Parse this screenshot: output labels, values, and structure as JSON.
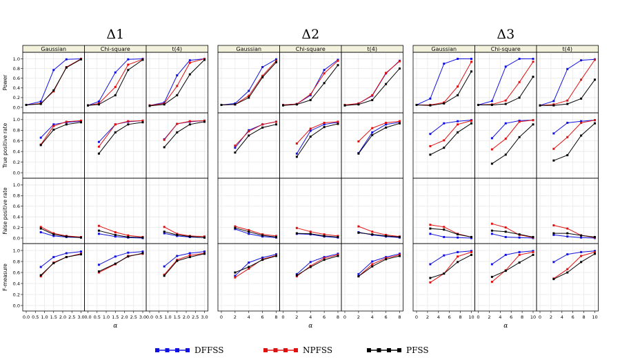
{
  "chart_data": {
    "type": "line",
    "groups": [
      {
        "title": "Δ1",
        "x": [
          [
            0.8,
            1.5,
            2.2,
            3.0
          ],
          [
            0.6,
            1.5,
            2.2,
            3.0
          ],
          [
            0.8,
            1.5,
            2.2,
            3.0
          ]
        ],
        "xlim": [
          0,
          3.0
        ],
        "xticks": [
          "0.0",
          "0.5",
          "1.0",
          "1.5",
          "2.0",
          "2.5",
          "3.0"
        ],
        "xtickvals": [
          0,
          0.5,
          1.0,
          1.5,
          2.0,
          2.5,
          3.0
        ]
      },
      {
        "title": "Δ2",
        "x": [
          [
            2,
            4,
            6,
            8
          ],
          [
            2,
            4,
            6,
            8
          ],
          [
            2,
            4,
            6,
            8
          ]
        ],
        "xlim": [
          0,
          8
        ],
        "xticks": [
          "0",
          "2",
          "4",
          "6",
          "8"
        ],
        "xtickvals": [
          0,
          2,
          4,
          6,
          8
        ]
      },
      {
        "title": "Δ3",
        "x": [
          [
            2.5,
            5,
            7.5,
            10
          ],
          [
            2.5,
            5,
            7.5,
            10
          ],
          [
            2.5,
            5,
            7.5,
            10
          ]
        ],
        "xlim": [
          0,
          10
        ],
        "xticks": [
          "0",
          "2",
          "4",
          "6",
          "8",
          "10"
        ],
        "xtickvals": [
          0,
          2,
          4,
          6,
          8,
          10
        ]
      }
    ],
    "distributions": [
      "Gaussian",
      "Chi-square",
      "t(4)"
    ],
    "rows": [
      "Power",
      "True positive rate",
      "False positive rate",
      "F-measure"
    ],
    "yticks": [
      "0.0",
      "0.2",
      "0.4",
      "0.6",
      "0.8",
      "1.0"
    ],
    "ylim": [
      0,
      1.05
    ],
    "xlabel": "α",
    "power_x0": [
      0,
      0,
      0
    ],
    "series_names": [
      "DFFSS",
      "NPFSS",
      "PFSS"
    ],
    "series_colors": [
      "#1010e0",
      "#e01010",
      "#000000"
    ],
    "data": {
      "Power": [
        [
          {
            "x0": 0,
            "DFFSS": [
              0.05,
              0.12,
              0.77,
              0.99,
              1.0
            ],
            "NPFSS": [
              0.05,
              0.08,
              0.33,
              0.83,
              1.0
            ],
            "PFSS": [
              0.05,
              0.07,
              0.35,
              0.82,
              0.99
            ]
          },
          {
            "x0": 0,
            "DFFSS": [
              0.04,
              0.12,
              0.72,
              0.99,
              1.0
            ],
            "NPFSS": [
              0.04,
              0.08,
              0.42,
              0.88,
              0.99
            ],
            "PFSS": [
              0.04,
              0.06,
              0.25,
              0.77,
              0.98
            ]
          },
          {
            "x0": 0,
            "DFFSS": [
              0.04,
              0.1,
              0.66,
              0.97,
              1.0
            ],
            "NPFSS": [
              0.04,
              0.08,
              0.44,
              0.92,
              1.0
            ],
            "PFSS": [
              0.03,
              0.06,
              0.25,
              0.68,
              0.98
            ]
          }
        ],
        [
          {
            "x0": 0,
            "DFFSS": [
              0.05,
              0.08,
              0.34,
              0.83,
              0.99
            ],
            "NPFSS": [
              0.05,
              0.06,
              0.24,
              0.65,
              0.96
            ],
            "PFSS": [
              0.05,
              0.06,
              0.2,
              0.62,
              0.93
            ]
          },
          {
            "x0": 0,
            "DFFSS": [
              0.05,
              0.07,
              0.25,
              0.77,
              0.98
            ],
            "NPFSS": [
              0.05,
              0.07,
              0.27,
              0.7,
              0.96
            ],
            "PFSS": [
              0.04,
              0.06,
              0.15,
              0.5,
              0.87
            ]
          },
          {
            "x0": 0,
            "DFFSS": [
              0.04,
              0.08,
              0.24,
              0.7,
              0.96
            ],
            "NPFSS": [
              0.05,
              0.08,
              0.25,
              0.71,
              0.95
            ],
            "PFSS": [
              0.04,
              0.06,
              0.15,
              0.48,
              0.8
            ]
          }
        ],
        [
          {
            "x0": 0,
            "DFFSS": [
              0.05,
              0.18,
              0.9,
              1.0,
              1.0
            ],
            "NPFSS": [
              0.05,
              0.05,
              0.1,
              0.43,
              0.94
            ],
            "PFSS": [
              0.05,
              0.04,
              0.08,
              0.25,
              0.74
            ]
          },
          {
            "x0": 0,
            "DFFSS": [
              0.05,
              0.13,
              0.84,
              1.0,
              1.0
            ],
            "NPFSS": [
              0.05,
              0.06,
              0.14,
              0.52,
              0.94
            ],
            "PFSS": [
              0.05,
              0.05,
              0.07,
              0.2,
              0.63
            ]
          },
          {
            "x0": 0,
            "DFFSS": [
              0.04,
              0.13,
              0.79,
              0.97,
              0.99
            ],
            "NPFSS": [
              0.04,
              0.06,
              0.14,
              0.57,
              0.98
            ],
            "PFSS": [
              0.04,
              0.04,
              0.07,
              0.18,
              0.57
            ]
          }
        ]
      ],
      "True positive rate": [
        [
          {
            "DFFSS": [
              0.66,
              0.91,
              0.95,
              0.97
            ],
            "NPFSS": [
              0.53,
              0.88,
              0.96,
              0.98
            ],
            "PFSS": [
              0.52,
              0.81,
              0.91,
              0.95
            ]
          },
          {
            "DFFSS": [
              0.58,
              0.91,
              0.96,
              0.98
            ],
            "NPFSS": [
              0.49,
              0.91,
              0.97,
              0.98
            ],
            "PFSS": [
              0.36,
              0.76,
              0.91,
              0.95
            ]
          },
          {
            "DFFSS": [
              0.63,
              0.92,
              0.96,
              0.98
            ],
            "NPFSS": [
              0.62,
              0.92,
              0.97,
              0.98
            ],
            "PFSS": [
              0.48,
              0.76,
              0.91,
              0.96
            ]
          }
        ],
        [
          {
            "DFFSS": [
              0.47,
              0.8,
              0.91,
              0.96
            ],
            "NPFSS": [
              0.51,
              0.78,
              0.91,
              0.96
            ],
            "PFSS": [
              0.38,
              0.7,
              0.85,
              0.91
            ]
          },
          {
            "DFFSS": [
              0.36,
              0.79,
              0.91,
              0.95
            ],
            "NPFSS": [
              0.55,
              0.83,
              0.94,
              0.96
            ],
            "PFSS": [
              0.3,
              0.68,
              0.86,
              0.92
            ]
          },
          {
            "DFFSS": [
              0.37,
              0.76,
              0.91,
              0.95
            ],
            "NPFSS": [
              0.59,
              0.84,
              0.94,
              0.97
            ],
            "PFSS": [
              0.36,
              0.71,
              0.85,
              0.93
            ]
          }
        ],
        [
          {
            "DFFSS": [
              0.73,
              0.93,
              0.97,
              0.99
            ],
            "NPFSS": [
              0.5,
              0.61,
              0.91,
              0.98
            ],
            "PFSS": [
              0.34,
              0.47,
              0.76,
              0.93
            ]
          },
          {
            "DFFSS": [
              0.65,
              0.93,
              0.98,
              0.99
            ],
            "NPFSS": [
              0.44,
              0.64,
              0.96,
              0.99
            ],
            "PFSS": [
              0.17,
              0.34,
              0.67,
              0.91
            ]
          },
          {
            "DFFSS": [
              0.74,
              0.94,
              0.97,
              0.99
            ],
            "NPFSS": [
              0.45,
              0.67,
              0.94,
              0.99
            ],
            "PFSS": [
              0.23,
              0.33,
              0.7,
              0.93
            ]
          }
        ]
      ],
      "False positive rate": [
        [
          {
            "DFFSS": [
              0.11,
              0.04,
              0.02,
              0.01
            ],
            "NPFSS": [
              0.21,
              0.09,
              0.04,
              0.02
            ],
            "PFSS": [
              0.18,
              0.07,
              0.03,
              0.01
            ]
          },
          {
            "DFFSS": [
              0.08,
              0.03,
              0.01,
              0.0
            ],
            "NPFSS": [
              0.23,
              0.11,
              0.05,
              0.02
            ],
            "PFSS": [
              0.14,
              0.06,
              0.02,
              0.01
            ]
          },
          {
            "DFFSS": [
              0.09,
              0.04,
              0.02,
              0.01
            ],
            "NPFSS": [
              0.21,
              0.08,
              0.04,
              0.03
            ],
            "PFSS": [
              0.12,
              0.06,
              0.03,
              0.01
            ]
          }
        ],
        [
          {
            "DFFSS": [
              0.17,
              0.08,
              0.03,
              0.01
            ],
            "NPFSS": [
              0.22,
              0.15,
              0.07,
              0.04
            ],
            "PFSS": [
              0.19,
              0.12,
              0.05,
              0.02
            ]
          },
          {
            "DFFSS": [
              0.08,
              0.07,
              0.03,
              0.01
            ],
            "NPFSS": [
              0.19,
              0.12,
              0.07,
              0.04
            ],
            "PFSS": [
              0.09,
              0.08,
              0.04,
              0.02
            ]
          },
          {
            "DFFSS": [
              0.11,
              0.06,
              0.03,
              0.01
            ],
            "NPFSS": [
              0.22,
              0.12,
              0.06,
              0.03
            ],
            "PFSS": [
              0.1,
              0.07,
              0.04,
              0.02
            ]
          }
        ],
        [
          {
            "DFFSS": [
              0.08,
              0.02,
              0.01,
              0.0
            ],
            "NPFSS": [
              0.25,
              0.21,
              0.08,
              0.02
            ],
            "PFSS": [
              0.18,
              0.16,
              0.07,
              0.02
            ]
          },
          {
            "DFFSS": [
              0.08,
              0.02,
              0.01,
              0.0
            ],
            "NPFSS": [
              0.27,
              0.2,
              0.06,
              0.01
            ],
            "PFSS": [
              0.14,
              0.12,
              0.07,
              0.02
            ]
          },
          {
            "DFFSS": [
              0.06,
              0.03,
              0.01,
              0.0
            ],
            "NPFSS": [
              0.24,
              0.18,
              0.05,
              0.01
            ],
            "PFSS": [
              0.09,
              0.09,
              0.05,
              0.02
            ]
          }
        ]
      ],
      "F-measure": [
        [
          {
            "DFFSS": [
              0.7,
              0.88,
              0.95,
              0.98
            ],
            "NPFSS": [
              0.53,
              0.78,
              0.88,
              0.94
            ],
            "PFSS": [
              0.55,
              0.77,
              0.88,
              0.93
            ]
          },
          {
            "DFFSS": [
              0.74,
              0.89,
              0.96,
              0.98
            ],
            "NPFSS": [
              0.6,
              0.75,
              0.9,
              0.94
            ],
            "PFSS": [
              0.62,
              0.76,
              0.89,
              0.95
            ]
          },
          {
            "DFFSS": [
              0.71,
              0.9,
              0.95,
              0.98
            ],
            "NPFSS": [
              0.56,
              0.83,
              0.91,
              0.95
            ],
            "PFSS": [
              0.54,
              0.81,
              0.88,
              0.94
            ]
          }
        ],
        [
          {
            "DFFSS": [
              0.54,
              0.78,
              0.87,
              0.93
            ],
            "NPFSS": [
              0.51,
              0.67,
              0.84,
              0.91
            ],
            "PFSS": [
              0.6,
              0.7,
              0.83,
              0.9
            ]
          },
          {
            "DFFSS": [
              0.57,
              0.79,
              0.88,
              0.94
            ],
            "NPFSS": [
              0.53,
              0.72,
              0.86,
              0.92
            ],
            "PFSS": [
              0.55,
              0.7,
              0.83,
              0.9
            ]
          },
          {
            "DFFSS": [
              0.57,
              0.8,
              0.88,
              0.94
            ],
            "NPFSS": [
              0.53,
              0.75,
              0.86,
              0.92
            ],
            "PFSS": [
              0.53,
              0.71,
              0.84,
              0.9
            ]
          }
        ],
        [
          {
            "DFFSS": [
              0.75,
              0.91,
              0.97,
              0.99
            ],
            "NPFSS": [
              0.42,
              0.58,
              0.89,
              0.97
            ],
            "PFSS": [
              0.5,
              0.58,
              0.79,
              0.92
            ]
          },
          {
            "DFFSS": [
              0.75,
              0.92,
              0.97,
              0.99
            ],
            "NPFSS": [
              0.43,
              0.64,
              0.92,
              0.97
            ],
            "PFSS": [
              0.52,
              0.63,
              0.78,
              0.92
            ]
          },
          {
            "DFFSS": [
              0.79,
              0.93,
              0.97,
              0.99
            ],
            "NPFSS": [
              0.49,
              0.66,
              0.9,
              0.97
            ],
            "PFSS": [
              0.48,
              0.6,
              0.79,
              0.94
            ]
          }
        ]
      ]
    },
    "legend": [
      {
        "name": "DFFSS",
        "color": "#1010e0"
      },
      {
        "name": "NPFSS",
        "color": "#e01010"
      },
      {
        "name": "PFSS",
        "color": "#000000"
      }
    ]
  }
}
